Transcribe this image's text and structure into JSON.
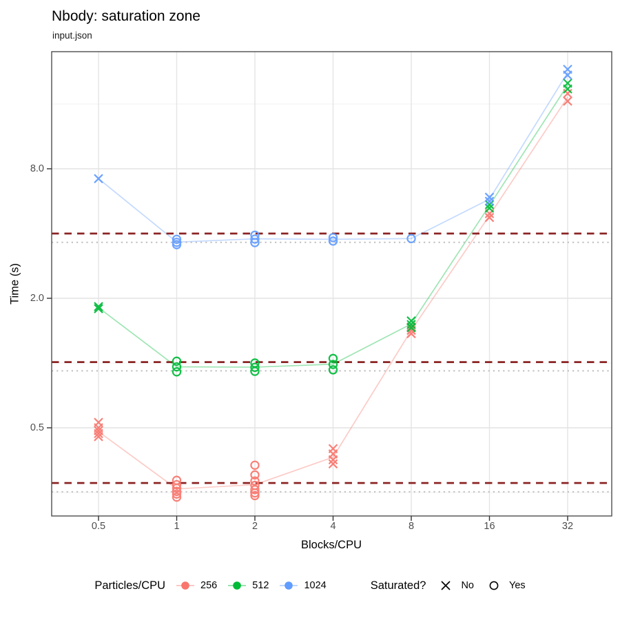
{
  "title": "Nbody: saturation zone",
  "subtitle": "input.json",
  "chart_data": {
    "type": "scatter",
    "title": "Nbody: saturation zone",
    "subtitle": "input.json",
    "xlabel": "Blocks/CPU",
    "ylabel": "Time (s)",
    "x_scale": "log2",
    "y_scale": "log2",
    "x_ticks": [
      0.5,
      1,
      2,
      4,
      8,
      16,
      32
    ],
    "x_tick_labels": [
      "0.5",
      "1",
      "2",
      "4",
      "8",
      "16",
      "32"
    ],
    "y_ticks": [
      0.5,
      2.0,
      8.0
    ],
    "y_tick_labels": [
      "0.5",
      "2.0",
      "8.0"
    ],
    "x_range": [
      0.33,
      47
    ],
    "y_range": [
      0.195,
      28
    ],
    "grid": {
      "h_major": [
        0.5,
        2,
        8
      ],
      "h_minor": [
        0.25,
        1,
        4,
        16
      ],
      "v_major": [
        0.5,
        1,
        2,
        4,
        8,
        16,
        32
      ]
    },
    "colors": {
      "red": "#F8766D",
      "green": "#00BA38",
      "blue": "#619CFF",
      "dashed_line": "#8B2323",
      "dotted_line": "#c2c2c2",
      "tick_text": "#4d4d4d"
    },
    "reference_lines": {
      "dashed": [
        {
          "series": "1024",
          "y": 4.0
        },
        {
          "series": "512",
          "y": 1.01
        },
        {
          "series": "256",
          "y": 0.277
        }
      ],
      "dotted": [
        {
          "series": "1024",
          "y": 3.64
        },
        {
          "series": "512",
          "y": 0.92
        },
        {
          "series": "256",
          "y": 0.252
        }
      ]
    },
    "series": [
      {
        "name": "256",
        "color": "#F8766D",
        "line_x": [
          0.5,
          1,
          2,
          4,
          8,
          16,
          32
        ],
        "line_y": [
          0.48,
          0.26,
          0.272,
          0.365,
          1.42,
          4.85,
          17.2
        ],
        "points": [
          {
            "x": 0.5,
            "saturated": false,
            "times": [
              0.53,
              0.5,
              0.485,
              0.47,
              0.455
            ]
          },
          {
            "x": 1,
            "saturated": true,
            "times": [
              0.285,
              0.272,
              0.262,
              0.253,
              0.246,
              0.238
            ]
          },
          {
            "x": 2,
            "saturated": true,
            "times": [
              0.335,
              0.302,
              0.283,
              0.27,
              0.258,
              0.249,
              0.242
            ]
          },
          {
            "x": 4,
            "saturated": false,
            "times": [
              0.4,
              0.378,
              0.355,
              0.34
            ]
          },
          {
            "x": 8,
            "saturated": false,
            "times": [
              1.47,
              1.42,
              1.37
            ]
          },
          {
            "x": 16,
            "saturated": false,
            "times": [
              4.95,
              4.75
            ]
          },
          {
            "x": 32,
            "saturated": false,
            "times": [
              17.9,
              16.5
            ]
          }
        ]
      },
      {
        "name": "512",
        "color": "#00BA38",
        "line_x": [
          0.5,
          1,
          2,
          4,
          8,
          16,
          32
        ],
        "line_y": [
          1.81,
          0.96,
          0.957,
          0.988,
          1.52,
          5.4,
          19.6
        ],
        "points": [
          {
            "x": 0.5,
            "saturated": false,
            "times": [
              1.83,
              1.79
            ]
          },
          {
            "x": 1,
            "saturated": true,
            "times": [
              1.02,
              0.96,
              0.91
            ]
          },
          {
            "x": 2,
            "saturated": true,
            "times": [
              1.0,
              0.955,
              0.915
            ]
          },
          {
            "x": 4,
            "saturated": true,
            "times": [
              1.05,
              0.985,
              0.93
            ]
          },
          {
            "x": 8,
            "saturated": false,
            "times": [
              1.57,
              1.51,
              1.46
            ]
          },
          {
            "x": 16,
            "saturated": false,
            "times": [
              5.45,
              5.25
            ]
          },
          {
            "x": 32,
            "saturated": false,
            "times": [
              20.0,
              18.8
            ]
          }
        ]
      },
      {
        "name": "1024",
        "color": "#619CFF",
        "line_x": [
          0.5,
          1,
          2,
          4,
          8,
          16,
          32
        ],
        "line_y": [
          7.2,
          3.65,
          3.78,
          3.76,
          3.79,
          5.78,
          22.4
        ],
        "points": [
          {
            "x": 0.5,
            "saturated": false,
            "times": [
              7.2
            ]
          },
          {
            "x": 1,
            "saturated": true,
            "times": [
              3.76,
              3.64,
              3.55
            ]
          },
          {
            "x": 2,
            "saturated": true,
            "times": [
              3.93,
              3.77,
              3.63
            ]
          },
          {
            "x": 4,
            "saturated": true,
            "times": [
              3.83,
              3.69
            ]
          },
          {
            "x": 8,
            "saturated": true,
            "times": [
              3.79
            ]
          },
          {
            "x": 16,
            "saturated": false,
            "times": [
              5.9,
              5.65
            ]
          },
          {
            "x": 32,
            "saturated": false,
            "times": [
              23.2,
              21.8
            ]
          }
        ]
      }
    ],
    "legend": {
      "color_title": "Particles/CPU",
      "color_items": [
        {
          "label": "256",
          "hex": "#F8766D"
        },
        {
          "label": "512",
          "hex": "#00BA38"
        },
        {
          "label": "1024",
          "hex": "#619CFF"
        }
      ],
      "shape_title": "Saturated?",
      "shape_items": [
        {
          "label": "No",
          "glyph": "x"
        },
        {
          "label": "Yes",
          "glyph": "circle"
        }
      ]
    }
  }
}
